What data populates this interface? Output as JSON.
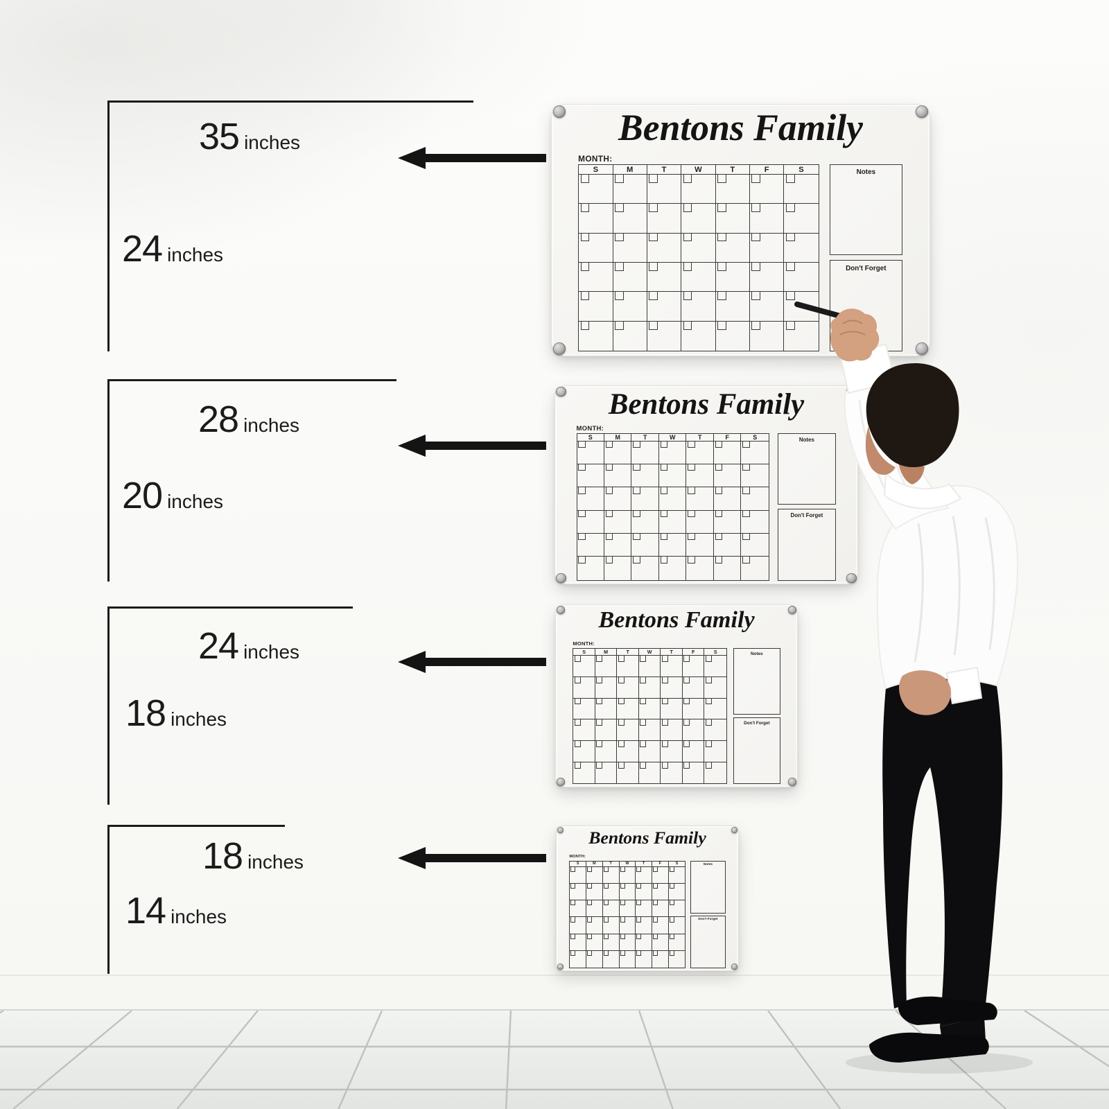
{
  "scene": {
    "type": "product-size-comparison",
    "wall_color": "#fbfbf9",
    "floor_tile_color": "#eaece9",
    "grout_color": "#b7bbb8",
    "annotation_ink_color": "#1a1a1a"
  },
  "calendar": {
    "title": "Bentons Family",
    "month_label": "MONTH:",
    "day_headers": [
      "S",
      "M",
      "T",
      "W",
      "T",
      "F",
      "S"
    ],
    "notes_label": "Notes",
    "dont_forget_label": "Don't Forget",
    "week_rows": 6,
    "board_color": "#f7f6f3",
    "line_color": "#3a3a3a",
    "screw_color": "#9b9b9b"
  },
  "size_options": [
    {
      "width_value": "35",
      "width_unit": "inches",
      "height_value": "24",
      "height_unit": "inches"
    },
    {
      "width_value": "28",
      "width_unit": "inches",
      "height_value": "20",
      "height_unit": "inches"
    },
    {
      "width_value": "24",
      "width_unit": "inches",
      "height_value": "18",
      "height_unit": "inches"
    },
    {
      "width_value": "18",
      "width_unit": "inches",
      "height_value": "14",
      "height_unit": "inches"
    }
  ],
  "figure": {
    "description": "man writing on top calendar with marker",
    "shirt_color": "#fcfcfc",
    "pants_color": "#0d0d0f",
    "hair_color": "#1f1812",
    "skin_color": "#cb977a",
    "pen_color": "#1a1a1a"
  }
}
